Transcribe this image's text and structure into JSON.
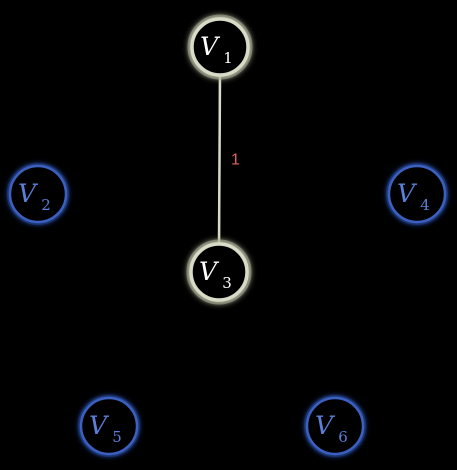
{
  "colors": {
    "background": "#000000",
    "highlight_stroke": "#d8dbc6",
    "highlight_glow": "#9ea38a",
    "highlight_text": "#ffffff",
    "normal_stroke": "#3a60c0",
    "normal_glow": "#1e3a8a",
    "normal_text": "#5b7fd9",
    "edge_weight_color": "#e06060"
  },
  "vertices": [
    {
      "id": "v1",
      "letter": "V",
      "sub": "1",
      "state": "highlighted"
    },
    {
      "id": "v2",
      "letter": "V",
      "sub": "2",
      "state": "normal"
    },
    {
      "id": "v3",
      "letter": "V",
      "sub": "3",
      "state": "highlighted"
    },
    {
      "id": "v4",
      "letter": "V",
      "sub": "4",
      "state": "normal"
    },
    {
      "id": "v5",
      "letter": "V",
      "sub": "5",
      "state": "normal"
    },
    {
      "id": "v6",
      "letter": "V",
      "sub": "6",
      "state": "normal"
    }
  ],
  "edges": [
    {
      "from": "v1",
      "to": "v3",
      "weight": "1",
      "state": "highlighted"
    }
  ]
}
